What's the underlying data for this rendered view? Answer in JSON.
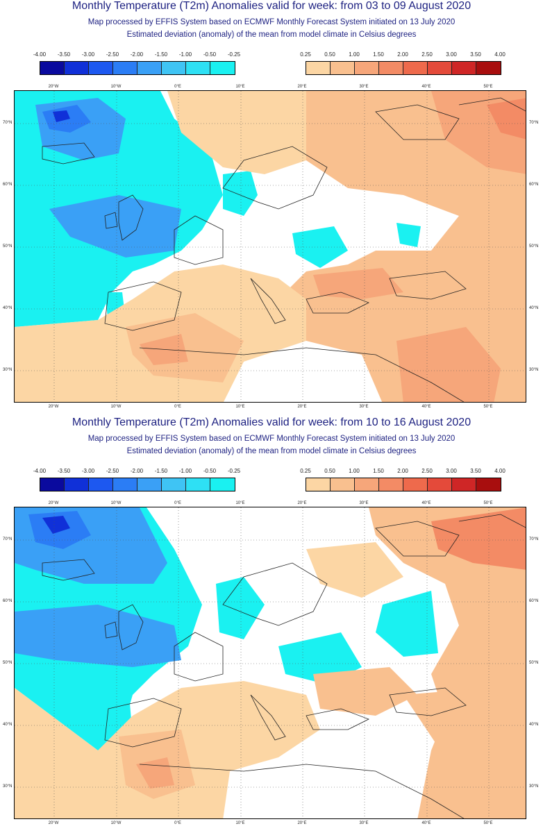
{
  "panels": [
    {
      "title": "Monthly Temperature (T2m) Anomalies valid for week: from 03 to 09 August 2020",
      "subtitle1": "Map processed by EFFIS System based on ECMWF Monthly Forecast System initiated on 13 July 2020",
      "subtitle2": "Estimated deviation (anomaly) of the mean from model climate in Celsius degrees"
    },
    {
      "title": "Monthly Temperature (T2m) Anomalies valid for week: from 10 to 16 August 2020",
      "subtitle1": "Map processed by EFFIS System based on ECMWF Monthly Forecast System initiated on 13 July 2020",
      "subtitle2": "Estimated deviation (anomaly) of the mean from model climate in Celsius degrees"
    }
  ],
  "legend": {
    "cold_ticks": [
      "-4.00",
      "-3.50",
      "-3.00",
      "-2.50",
      "-2.00",
      "-1.50",
      "-1.00",
      "-0.50",
      "-0.25"
    ],
    "warm_ticks": [
      "0.25",
      "0.50",
      "1.00",
      "1.50",
      "2.00",
      "2.50",
      "3.00",
      "3.50",
      "4.00"
    ],
    "cold_colors": [
      "#0a0a9e",
      "#1030d8",
      "#1d58f0",
      "#2b7df5",
      "#3aa0f6",
      "#3fc4f4",
      "#2ee0f4",
      "#1af1f1"
    ],
    "warm_colors": [
      "#fcd6a4",
      "#f9c08f",
      "#f6a67a",
      "#f38b65",
      "#ee6a4c",
      "#e44a3a",
      "#cf2626",
      "#a80e0e"
    ]
  },
  "axes": {
    "lon_labels": [
      "20°W",
      "10°W",
      "0°E",
      "10°E",
      "20°E",
      "30°E",
      "40°E",
      "50°E"
    ],
    "lat_labels": [
      "70°N",
      "60°N",
      "50°N",
      "40°N",
      "30°N"
    ]
  }
}
